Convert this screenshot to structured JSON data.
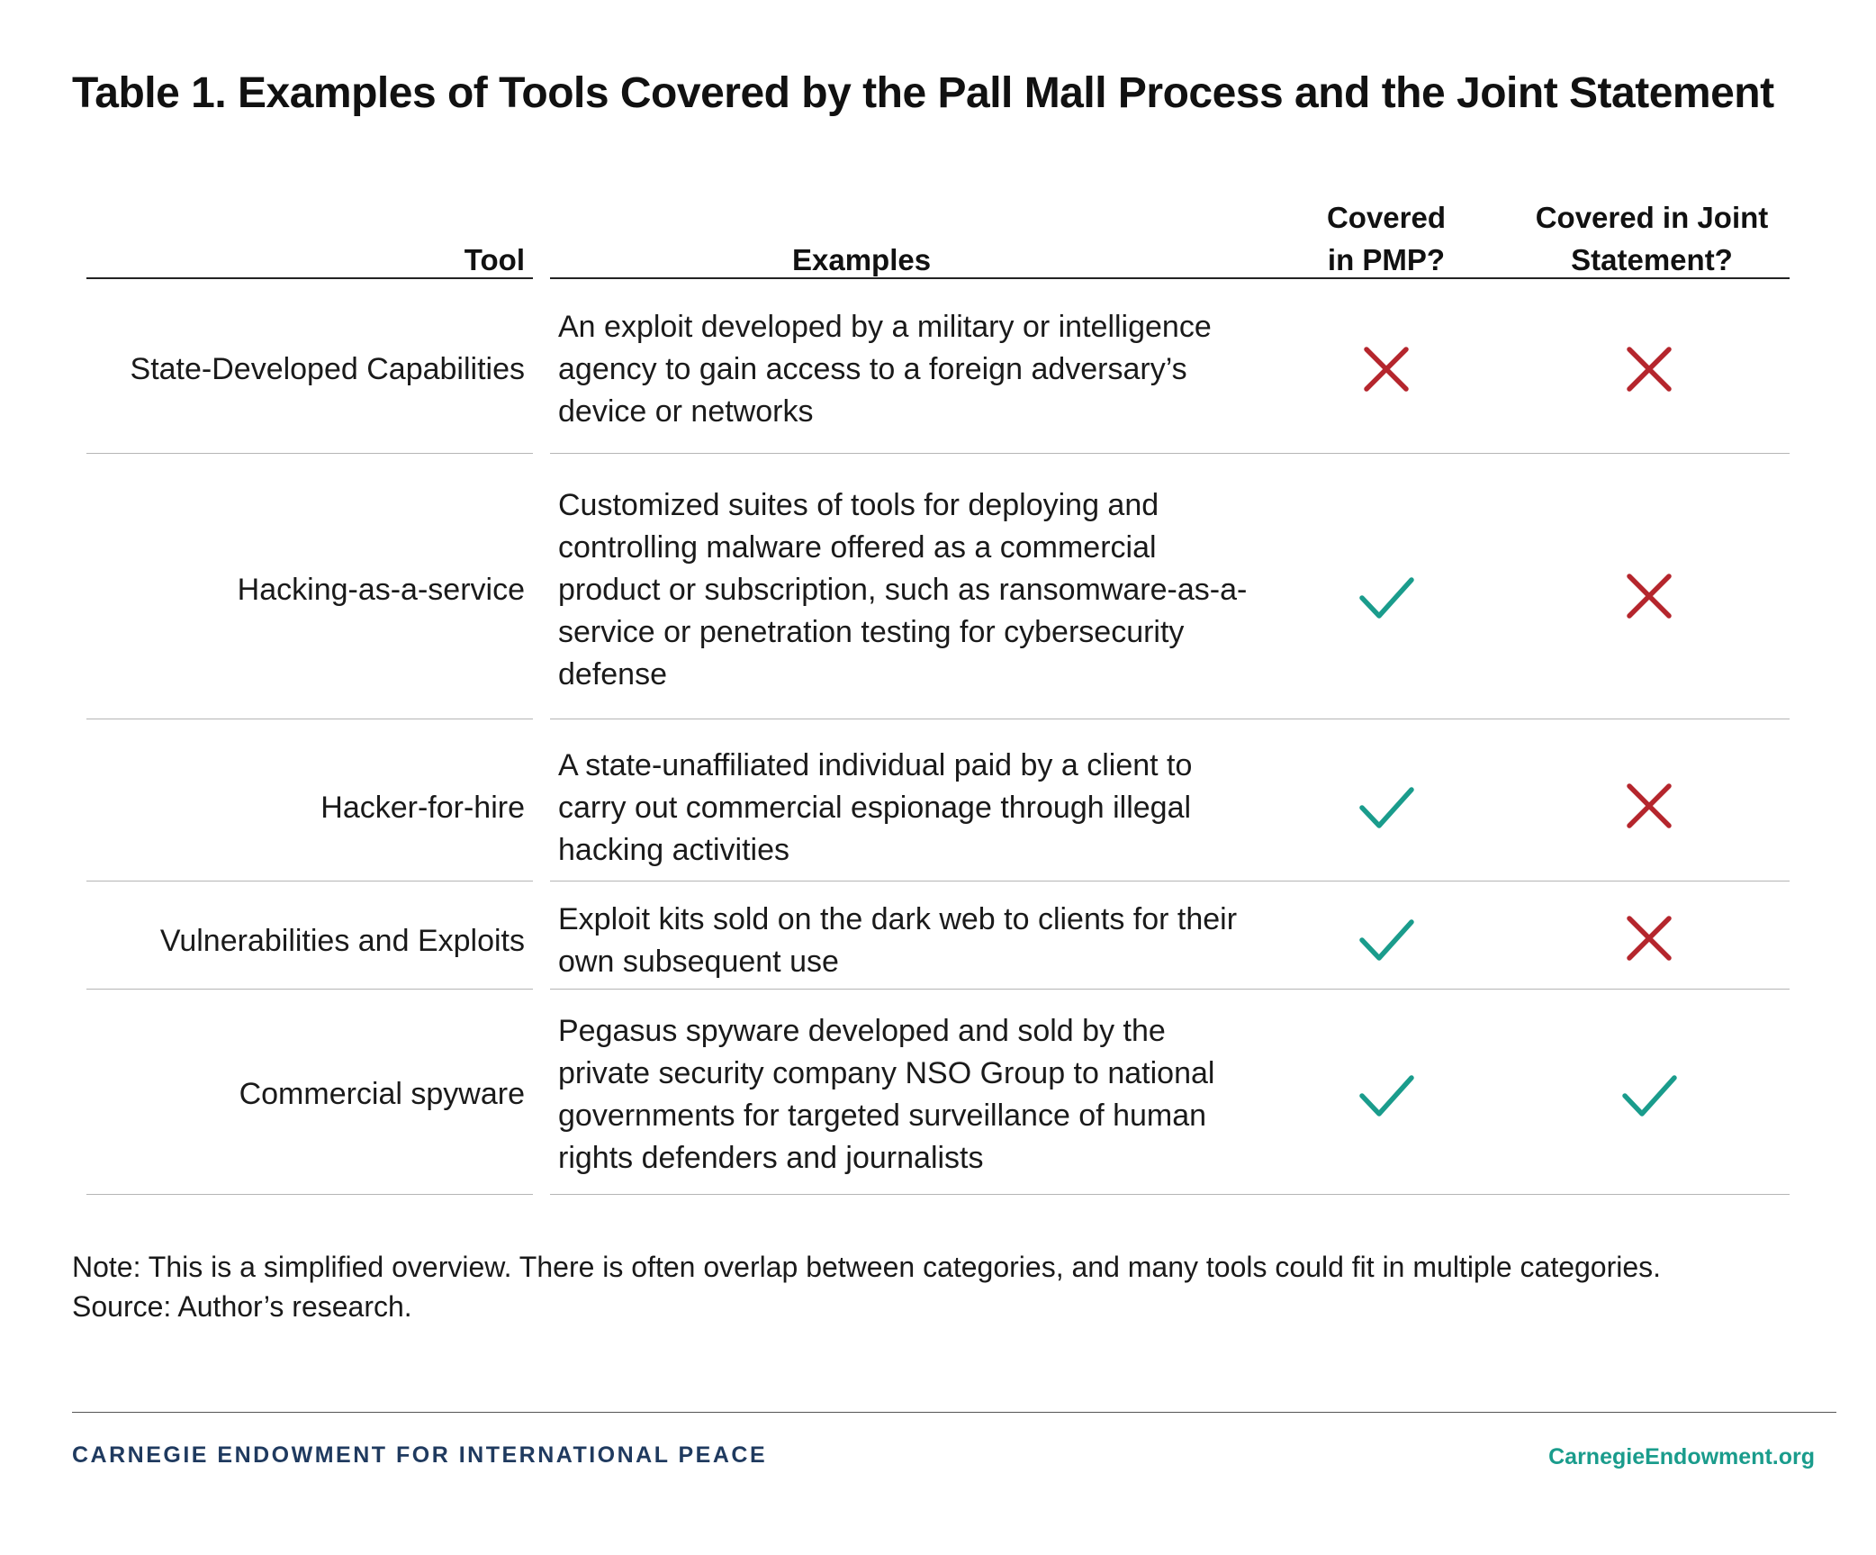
{
  "title": "Table 1. Examples of Tools Covered by the Pall Mall Process and the Joint Statement",
  "headers": {
    "tool": "Tool",
    "examples": "Examples",
    "pmp_line1": "Covered",
    "pmp_line2": "in PMP?",
    "joint_line1": "Covered in Joint",
    "joint_line2": "Statement?"
  },
  "rows": [
    {
      "tool": "State-Developed Capabilities",
      "example": "An exploit developed by a military or intelligence agency to gain access to a foreign adversary’s device or networks",
      "pmp": "cross",
      "joint": "cross"
    },
    {
      "tool": "Hacking-as-a-service",
      "example": "Customized suites of tools for deploying and controlling malware offered as a commercial product or subscription, such as ransomware-as-a-service or penetration testing for cybersecurity defense",
      "pmp": "check",
      "joint": "cross"
    },
    {
      "tool": "Hacker-for-hire",
      "example": "A state-unaffiliated individual paid by a client to carry out commercial espionage through illegal hacking activities",
      "pmp": "check",
      "joint": "cross"
    },
    {
      "tool": "Vulnerabilities and Exploits",
      "example": "Exploit kits sold on the dark web to clients for their own subsequent use",
      "pmp": "check",
      "joint": "cross"
    },
    {
      "tool": "Commercial spyware",
      "example": "Pegasus spyware developed and sold by the private security company NSO Group to national governments for targeted surveillance of human rights defenders and journalists",
      "pmp": "check",
      "joint": "check"
    }
  ],
  "note": "Note: This is a simplified overview. There is often overlap between categories, and many tools could fit in multiple categories.",
  "source": "Source: Author’s research.",
  "footer": {
    "organization": "CARNEGIE ENDOWMENT FOR INTERNATIONAL PEACE",
    "website": "CarnegieEndowment.org"
  },
  "colors": {
    "check": "#1a9c8c",
    "cross": "#b5262d",
    "org": "#1f3a5f",
    "website": "#1a9c8c"
  }
}
